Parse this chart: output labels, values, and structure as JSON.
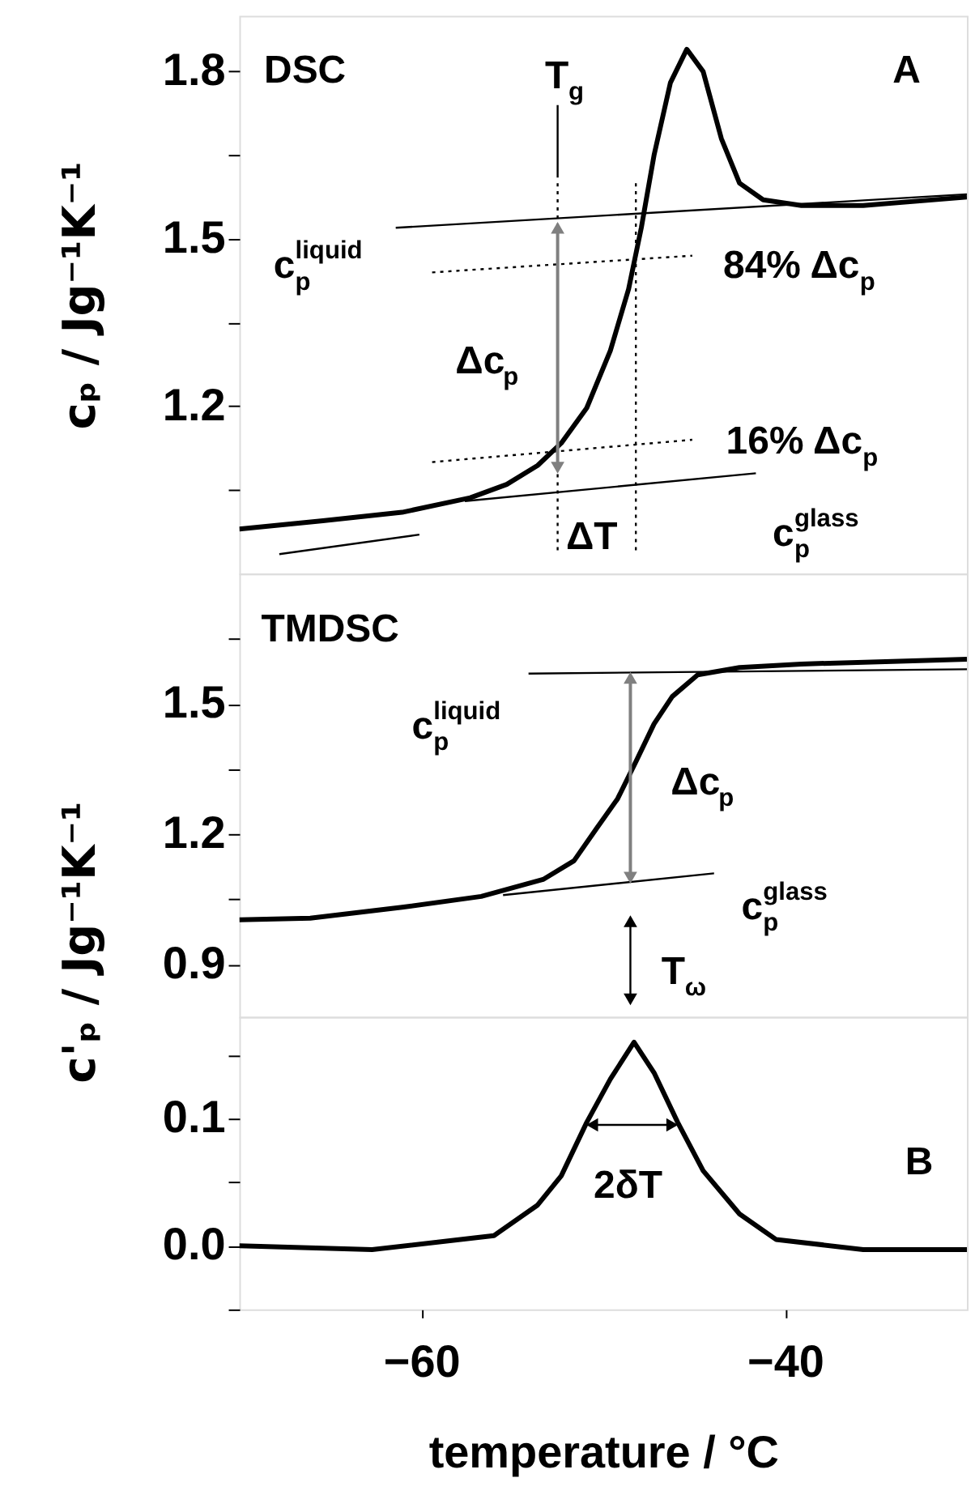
{
  "chart_data": [
    {
      "type": "line",
      "ylabel": "cₚ  /  Jg⁻¹K⁻¹",
      "xlim": [
        -70,
        -30
      ],
      "ylim": [
        0.9,
        1.9
      ],
      "yticks": [
        {
          "value": 1.05,
          "label": null
        },
        1.2,
        {
          "value": 1.35,
          "label": null
        },
        1.5,
        {
          "value": 1.65,
          "label": null
        },
        1.8
      ],
      "tick_labels": "y",
      "grid": false,
      "series": [
        {
          "color": "#000000",
          "line_style": "solid",
          "marker": "none",
          "x": [
            -70,
            -65.4,
            -61.05,
            -57.3,
            -55.3,
            -53.6,
            -52.3,
            -50.9,
            -49.6,
            -48.6,
            -47.9,
            -47.2,
            -46.3,
            -45.4,
            -44.5,
            -43.5,
            -42.5,
            -41.2,
            -39.1,
            -35.7,
            -30
          ],
          "values": [
            0.98,
            0.995,
            1.01,
            1.036,
            1.06,
            1.094,
            1.134,
            1.197,
            1.3,
            1.41,
            1.52,
            1.65,
            1.78,
            1.84,
            1.8,
            1.68,
            1.6,
            1.57,
            1.56,
            1.56,
            1.575
          ]
        },
        {
          "color": "#000000",
          "line_style": "solid",
          "marker": "none",
          "x": [
            -61.4,
            -30
          ],
          "values": [
            1.52,
            1.58
          ]
        },
        {
          "color": "#000000",
          "line_style": "solid",
          "marker": "none",
          "x": [
            -57.6,
            -41.6
          ],
          "values": [
            1.03,
            1.08
          ]
        },
        {
          "color": "#000000",
          "line_style": "dotted",
          "marker": "none",
          "x": [
            -59.4,
            -45.1
          ],
          "values": [
            1.44,
            1.47
          ]
        },
        {
          "color": "#000000",
          "line_style": "dotted",
          "marker": "none",
          "x": [
            -59.4,
            -45.1
          ],
          "values": [
            1.1,
            1.14
          ]
        },
        {
          "color": "#000000",
          "line_style": "dotted",
          "marker": "none",
          "x": [
            -52.5,
            -52.5
          ],
          "values": [
            1.6,
            0.94
          ]
        },
        {
          "color": "#000000",
          "line_style": "dotted",
          "marker": "none",
          "x": [
            -48.2,
            -48.2
          ],
          "values": [
            1.6,
            0.94
          ]
        },
        {
          "color": "#000000",
          "line_style": "solid",
          "marker": "none",
          "x": [
            -52.5,
            -52.5
          ],
          "values": [
            1.74,
            1.61
          ]
        },
        {
          "color": "#808080",
          "line_style": "solid",
          "marker": "triangle",
          "x": [
            -52.5,
            -52.5
          ],
          "values": [
            1.52,
            1.09
          ]
        },
        {
          "color": "#000000",
          "line_style": "solid",
          "marker": "none",
          "x": [
            -67.8,
            -60.1
          ],
          "values": [
            0.935,
            0.97
          ]
        }
      ],
      "annotations": [
        "DSC",
        "A",
        "T$_{g}$",
        "c$^{liquid}$$_{p}$",
        "Δc$_{p}$",
        "84% Δc$_{p}$",
        "16% Δc$_{p}$",
        "c$^{glass}$$_{p}$",
        "ΔT"
      ]
    },
    {
      "type": "line",
      "ylabel": "c'ₚ  /  Jg⁻¹K⁻¹",
      "xlim": [
        -70,
        -30
      ],
      "ylim": [
        0.78,
        1.8
      ],
      "yticks": [
        0.9,
        {
          "value": 1.05,
          "label": null
        },
        1.2,
        {
          "value": 1.35,
          "label": null
        },
        1.5,
        {
          "value": 1.65,
          "label": null
        }
      ],
      "tick_labels": "y",
      "grid": false,
      "series": [
        {
          "color": "#000000",
          "line_style": "solid",
          "marker": "none",
          "x": [
            -70,
            -66.1,
            -61.05,
            -56.7,
            -53.3,
            -51.6,
            -50.3,
            -49.2,
            -48.2,
            -47.2,
            -46.2,
            -44.8,
            -42.5,
            -39.1,
            -34.1,
            -30
          ],
          "values": [
            1.003,
            1.007,
            1.032,
            1.057,
            1.096,
            1.139,
            1.217,
            1.282,
            1.367,
            1.454,
            1.517,
            1.567,
            1.584,
            1.592,
            1.598,
            1.603
          ]
        },
        {
          "color": "#000000",
          "line_style": "solid",
          "marker": "none",
          "x": [
            -54.1,
            -30
          ],
          "values": [
            1.57,
            1.58
          ]
        },
        {
          "color": "#000000",
          "line_style": "solid",
          "marker": "none",
          "x": [
            -55.5,
            -43.9
          ],
          "values": [
            1.06,
            1.11
          ]
        },
        {
          "color": "#808080",
          "line_style": "solid",
          "marker": "triangle",
          "x": [
            -48.5,
            -48.5
          ],
          "values": [
            1.56,
            1.1
          ]
        },
        {
          "color": "#000000",
          "line_style": "solid",
          "marker": "triangle",
          "x": [
            -48.5,
            -48.5
          ],
          "values": [
            1.0,
            0.82
          ]
        }
      ],
      "annotations": [
        "TMDSC",
        "c$^{liquid}$$_{p}$",
        "Δc$_{p}$",
        "c$^{glass}$$_{p}$",
        "T$_{ω}$"
      ]
    },
    {
      "type": "line",
      "xlabel": "temperature  /  °C",
      "xlim": [
        -70,
        -30
      ],
      "xticks": [
        -60,
        -40
      ],
      "ylim": [
        -0.05,
        0.18
      ],
      "yticks": [
        {
          "value": -0.05,
          "label": null
        },
        {
          "value": 0.0,
          "label": "0.0"
        },
        {
          "value": 0.05,
          "label": null
        },
        {
          "value": 0.1,
          "label": "0.1"
        },
        {
          "value": 0.15,
          "label": null
        }
      ],
      "grid": false,
      "series": [
        {
          "color": "#000000",
          "line_style": "solid",
          "marker": "none",
          "x": [
            -70,
            -62.7,
            -56,
            -53.6,
            -52.3,
            -50.9,
            -49.6,
            -48.3,
            -47.2,
            -45.9,
            -44.5,
            -42.5,
            -40.5,
            -35.7,
            -30
          ],
          "values": [
            0.0,
            -0.003,
            0.008,
            0.032,
            0.055,
            0.097,
            0.131,
            0.16,
            0.136,
            0.097,
            0.059,
            0.025,
            0.005,
            -0.003,
            -0.003
          ]
        },
        {
          "color": "#000000",
          "line_style": "solid",
          "marker": "triangle",
          "x": [
            -50.6,
            -46.2
          ],
          "values": [
            0.095,
            0.095
          ]
        }
      ],
      "annotations": [
        "2δT",
        "B"
      ]
    }
  ]
}
